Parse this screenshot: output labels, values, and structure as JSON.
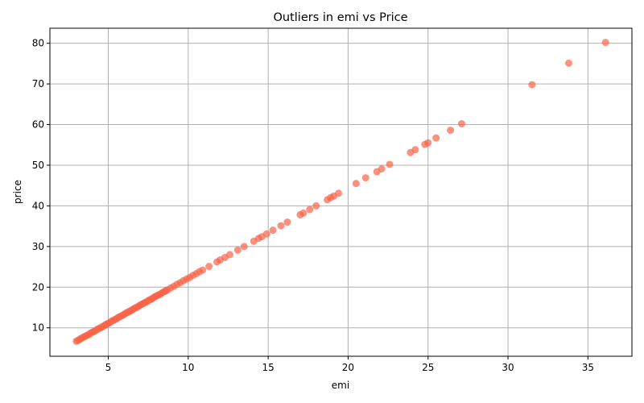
{
  "chart_data": {
    "type": "scatter",
    "title": "Outliers in emi vs Price",
    "xlabel": "emi",
    "ylabel": "price",
    "xlim": [
      1.35,
      37.75
    ],
    "ylim": [
      3.0,
      83.7
    ],
    "xticks": [
      5,
      10,
      15,
      20,
      25,
      30,
      35
    ],
    "yticks": [
      10,
      20,
      30,
      40,
      50,
      60,
      70,
      80
    ],
    "grid": true,
    "marker_color": "#fa6347",
    "marker_alpha": 0.7,
    "x": [
      3.0,
      3.1,
      3.2,
      3.3,
      3.4,
      3.5,
      3.6,
      3.7,
      3.8,
      3.9,
      4.0,
      4.1,
      4.2,
      4.3,
      4.4,
      4.5,
      4.6,
      4.7,
      4.8,
      4.9,
      5.0,
      5.1,
      5.2,
      5.3,
      5.4,
      5.5,
      5.6,
      5.7,
      5.8,
      5.9,
      6.0,
      6.1,
      6.2,
      6.3,
      6.4,
      6.5,
      6.6,
      6.7,
      6.8,
      6.9,
      7.0,
      7.1,
      7.2,
      7.3,
      7.4,
      7.5,
      7.6,
      7.7,
      7.8,
      7.9,
      8.0,
      8.1,
      8.2,
      8.3,
      8.4,
      8.5,
      8.6,
      8.7,
      8.9,
      9.1,
      9.3,
      9.5,
      9.7,
      9.9,
      10.1,
      10.3,
      10.5,
      10.7,
      10.9,
      11.3,
      11.8,
      12.0,
      12.3,
      12.6,
      13.1,
      13.5,
      14.1,
      14.4,
      14.6,
      14.9,
      15.3,
      15.8,
      16.2,
      17.0,
      17.2,
      17.6,
      18.0,
      18.7,
      18.9,
      19.1,
      19.4,
      20.5,
      21.1,
      21.8,
      22.1,
      22.6,
      23.9,
      24.2,
      24.8,
      25.0,
      25.5,
      26.4,
      27.1,
      31.5,
      33.8,
      36.1
    ],
    "y": [
      6.7,
      6.9,
      7.1,
      7.4,
      7.6,
      7.8,
      8.0,
      8.2,
      8.4,
      8.7,
      8.9,
      9.1,
      9.3,
      9.6,
      9.8,
      10.0,
      10.2,
      10.4,
      10.7,
      10.9,
      11.1,
      11.3,
      11.6,
      11.8,
      12.0,
      12.2,
      12.5,
      12.7,
      12.9,
      13.1,
      13.3,
      13.6,
      13.8,
      14.0,
      14.2,
      14.4,
      14.7,
      14.9,
      15.1,
      15.3,
      15.6,
      15.8,
      16.0,
      16.2,
      16.4,
      16.7,
      16.9,
      17.1,
      17.3,
      17.6,
      17.8,
      18.0,
      18.2,
      18.4,
      18.7,
      18.9,
      19.1,
      19.3,
      19.8,
      20.2,
      20.7,
      21.1,
      21.6,
      22.0,
      22.4,
      22.9,
      23.3,
      23.8,
      24.2,
      25.1,
      26.2,
      26.7,
      27.3,
      28.0,
      29.1,
      30.0,
      31.3,
      32.0,
      32.4,
      33.1,
      34.0,
      35.1,
      36.0,
      37.8,
      38.2,
      39.1,
      40.0,
      41.5,
      42.0,
      42.4,
      43.1,
      45.5,
      46.9,
      48.4,
      49.1,
      50.2,
      53.1,
      53.8,
      55.1,
      55.5,
      56.7,
      58.6,
      60.2,
      69.8,
      75.1,
      80.2
    ]
  }
}
